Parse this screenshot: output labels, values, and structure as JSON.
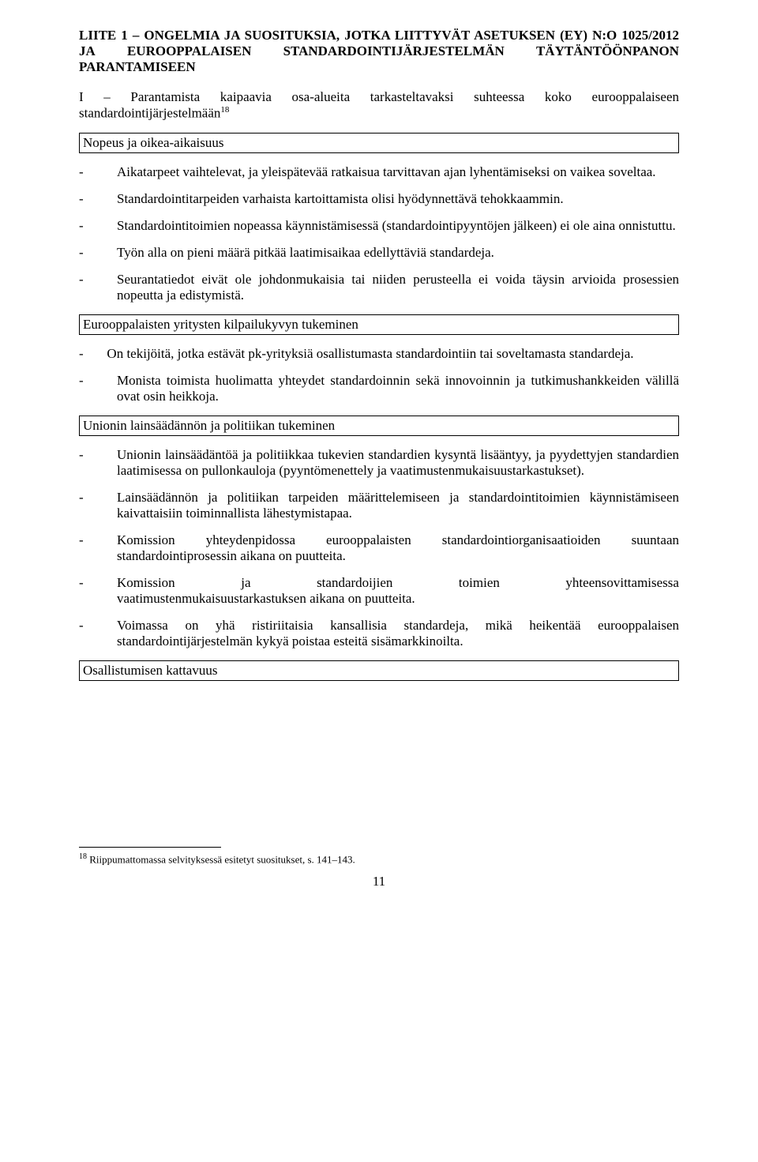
{
  "title": {
    "line1_a": "L",
    "line1_b": "IITE 1 – O",
    "line1_c": "NGELMIA JA SUOSITUKSIA",
    "line1_d": ", ",
    "line1_e": "JOTKA LIITTYVÄT ASETUKSEN ",
    "line1_f": "(EY) N:",
    "line1_g": "O",
    "line1_h": " 1025/2012",
    "line2_a": "JA",
    "line2_b": "EUROOPPALAISEN",
    "line2_c": "STANDARDOINTIJÄRJESTELMÄN",
    "line2_d": "TÄYTÄNTÖÖNPANON",
    "line3": "PARANTAMISEEN"
  },
  "section_i": {
    "prefix": "I – Parantamista kaipaavia osa-alueita tarkasteltavaksi suhteessa koko eurooppalaiseen standardointijärjestelmään",
    "sup": "18"
  },
  "box1": "Nopeus ja oikea-aikaisuus",
  "s1": {
    "i1": "Aikatarpeet vaihtelevat, ja yleispätevää ratkaisua tarvittavan ajan lyhentämiseksi on vaikea soveltaa.",
    "i2": "Standardointitarpeiden varhaista kartoittamista olisi hyödynnettävä tehokkaammin.",
    "i3": "Standardointitoimien nopeassa käynnistämisessä (standardointipyyntöjen jälkeen) ei ole aina onnistuttu.",
    "i4": "Työn alla on pieni määrä pitkää laatimisaikaa edellyttäviä standardeja.",
    "i5": "Seurantatiedot eivät ole johdonmukaisia tai niiden perusteella ei voida täysin arvioida prosessien nopeutta ja edistymistä."
  },
  "box2": "Eurooppalaisten yritysten kilpailukyvyn tukeminen",
  "s2": {
    "i1_pre": "-",
    "i1": "On tekijöitä, jotka estävät pk-yrityksiä osallistumasta standardointiin tai soveltamasta standardeja.",
    "i2": "Monista toimista huolimatta yhteydet standardoinnin sekä innovoinnin ja tutkimushankkeiden välillä ovat osin heikkoja."
  },
  "box3": "Unionin lainsäädännön ja politiikan tukeminen",
  "s3": {
    "i1": "Unionin lainsäädäntöä ja politiikkaa tukevien standardien kysyntä lisääntyy, ja pyydettyjen standardien laatimisessa on pullonkauloja (pyyntömenettely ja vaatimustenmukaisuustarkastukset).",
    "i2": "Lainsäädännön ja politiikan tarpeiden määrittelemiseen ja standardointitoimien käynnistämiseen kaivattaisiin toiminnallista lähestymistapaa.",
    "i3": "Komission yhteydenpidossa eurooppalaisten standardointiorganisaatioiden suuntaan standardointiprosessin aikana on puutteita.",
    "i4a": "Komission",
    "i4b": "ja",
    "i4c": "standardoijien",
    "i4d": "toimien",
    "i4e": "yhteensovittamisessa",
    "i4f": "vaatimustenmukaisuustarkastuksen aikana on puutteita.",
    "i5": "Voimassa on yhä ristiriitaisia kansallisia standardeja, mikä heikentää eurooppalaisen standardointijärjestelmän kykyä poistaa esteitä sisämarkkinoilta."
  },
  "box4": "Osallistumisen kattavuus",
  "footnote": {
    "num": "18",
    "text": " Riippumattomassa selvityksessä esitetyt suositukset, s. 141–143."
  },
  "page_number": "11"
}
